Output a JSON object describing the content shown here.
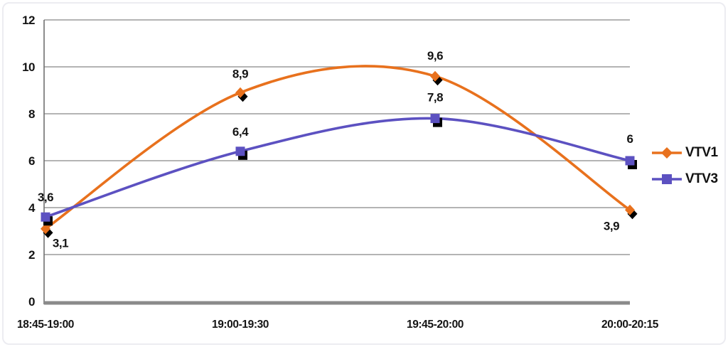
{
  "chart_data": {
    "type": "line",
    "smooth": true,
    "title": "",
    "categories": [
      "18:45-19:00",
      "19:00-19:30",
      "19:45-20:00",
      "20:00-20:15"
    ],
    "series": [
      {
        "name": "VTV1",
        "marker": "diamond",
        "color": "#e8711d",
        "values": [
          3.1,
          8.9,
          9.6,
          3.9
        ],
        "labels": [
          "3,1",
          "8,9",
          "9,6",
          "3,9"
        ]
      },
      {
        "name": "VTV3",
        "marker": "square",
        "color": "#5c51c1",
        "values": [
          3.6,
          6.4,
          7.8,
          6
        ],
        "labels": [
          "3,6",
          "6,4",
          "7,8",
          "6"
        ]
      }
    ],
    "ylim": [
      0,
      12
    ],
    "yticks": [
      0,
      2,
      4,
      6,
      8,
      10,
      12
    ],
    "ytick_labels": [
      "0",
      "2",
      "4",
      "6",
      "8",
      "10",
      "12"
    ],
    "grid": true,
    "legend_position": "right",
    "marker_shadow_color": "#000000",
    "gridline_color": "#9b9b9b",
    "axis_baseline_color": "#8a8a8a",
    "axis_vline_color": "#6f6f6f",
    "text_color": "#141414"
  }
}
